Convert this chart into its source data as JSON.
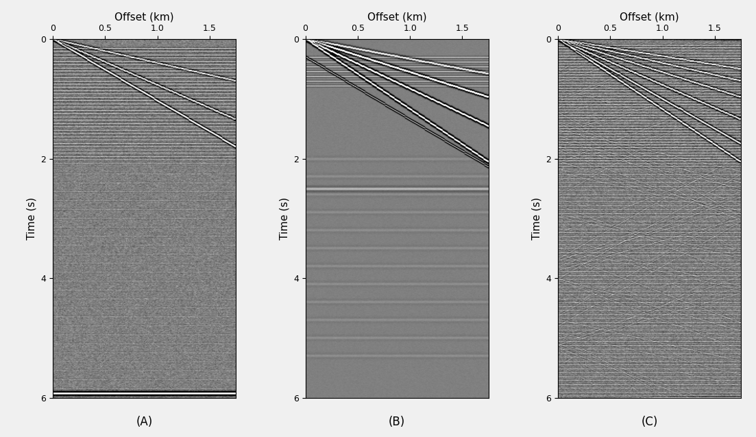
{
  "title_A": "(A)",
  "title_B": "(B)",
  "title_C": "(C)",
  "xlabel": "Offset (km)",
  "ylabel": "Time (s)",
  "xlim": [
    0,
    1.75
  ],
  "ylim": [
    0,
    6
  ],
  "xticks": [
    0,
    0.5,
    1.0,
    1.5
  ],
  "yticks": [
    0,
    2,
    4,
    6
  ],
  "background_color": "#f0f0f0",
  "figsize": [
    11.03,
    6.38
  ],
  "dpi": 100,
  "num_traces": 175,
  "num_samples": 600,
  "dt": 0.01,
  "t_max": 6.0,
  "x_max": 1.75
}
